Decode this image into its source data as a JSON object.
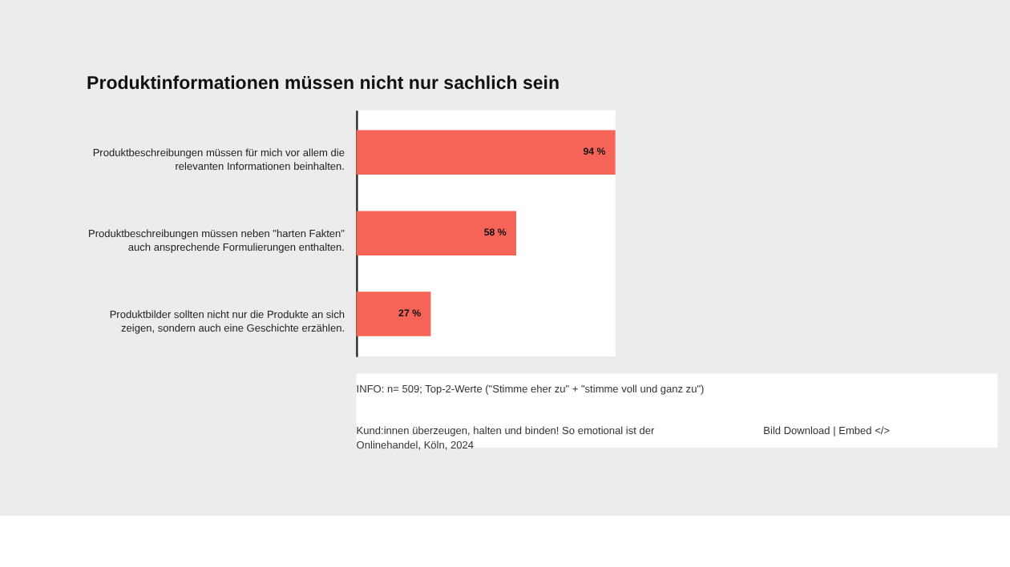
{
  "chart_data": {
    "type": "bar",
    "orientation": "horizontal",
    "title": "Produktinformationen müssen nicht nur sachlich sein",
    "categories": [
      "Produktbeschreibungen müssen für mich vor allem die relevanten Informationen beinhalten.",
      "Produktbeschreibungen müssen neben \"harten Fakten\" auch ansprechende Formulierungen enthalten.",
      "Produktbilder sollten nicht nur die Produkte an sich zeigen, sondern auch eine Geschichte erzählen."
    ],
    "values": [
      94,
      58,
      27
    ],
    "value_labels": [
      "94 %",
      "58 %",
      "27 %"
    ],
    "color": "#f56457",
    "data_labels": true,
    "annotations": [
      "INFO: n= 509;  Top-2-Werte (\"Stimme eher zu\" + \"stimme voll und ganz zu\")",
      "Kund:innen überzeugen, halten und binden! So emotional ist der Onlinehandel, Köln, 2024",
      "Bild Download | Embed </>"
    ]
  }
}
